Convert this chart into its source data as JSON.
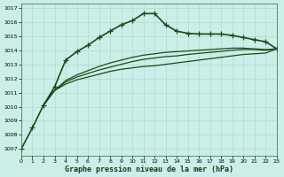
{
  "title": "Graphe pression niveau de la mer (hPa)",
  "background_color": "#cceee8",
  "grid_color": "#aaddcc",
  "line_color": "#1a4a1a",
  "xlim": [
    0,
    23
  ],
  "ylim": [
    1006.5,
    1017.3
  ],
  "yticks": [
    1007,
    1008,
    1009,
    1010,
    1011,
    1012,
    1013,
    1014,
    1015,
    1016,
    1017
  ],
  "xticks": [
    0,
    1,
    2,
    3,
    4,
    5,
    6,
    7,
    8,
    9,
    10,
    11,
    12,
    13,
    14,
    15,
    16,
    17,
    18,
    19,
    20,
    21,
    22,
    23
  ],
  "series": [
    {
      "x": [
        0,
        1,
        2,
        3,
        4,
        5,
        6,
        7,
        8,
        9,
        10,
        11,
        12,
        13,
        14,
        15,
        16,
        17,
        18,
        19,
        20,
        21,
        22,
        23
      ],
      "y": [
        1007.0,
        1008.5,
        1010.1,
        1011.4,
        1013.3,
        1013.9,
        1014.35,
        1014.9,
        1015.35,
        1015.8,
        1016.1,
        1016.6,
        1016.6,
        1015.8,
        1015.35,
        1015.2,
        1015.15,
        1015.15,
        1015.15,
        1015.05,
        1014.9,
        1014.75,
        1014.6,
        1014.1
      ],
      "marker": "+",
      "linewidth": 1.2,
      "markersize": 4
    },
    {
      "x": [
        2,
        3,
        4,
        5,
        6,
        7,
        8,
        9,
        10,
        11,
        12,
        13,
        14,
        15,
        16,
        17,
        18,
        19,
        20,
        21,
        22,
        23
      ],
      "y": [
        1010.1,
        1011.15,
        1011.6,
        1011.9,
        1012.1,
        1012.3,
        1012.5,
        1012.65,
        1012.75,
        1012.85,
        1012.9,
        1013.0,
        1013.1,
        1013.2,
        1013.3,
        1013.4,
        1013.5,
        1013.6,
        1013.7,
        1013.75,
        1013.8,
        1014.1
      ],
      "marker": null,
      "linewidth": 0.9
    },
    {
      "x": [
        2,
        3,
        4,
        5,
        6,
        7,
        8,
        9,
        10,
        11,
        12,
        13,
        14,
        15,
        16,
        17,
        18,
        19,
        20,
        21,
        22,
        23
      ],
      "y": [
        1010.1,
        1011.15,
        1011.75,
        1012.1,
        1012.35,
        1012.6,
        1012.8,
        1013.0,
        1013.2,
        1013.35,
        1013.45,
        1013.55,
        1013.6,
        1013.7,
        1013.78,
        1013.85,
        1013.92,
        1014.0,
        1014.05,
        1014.05,
        1014.0,
        1014.1
      ],
      "marker": null,
      "linewidth": 0.9
    },
    {
      "x": [
        2,
        3,
        4,
        5,
        6,
        7,
        8,
        9,
        10,
        11,
        12,
        13,
        14,
        15,
        16,
        17,
        18,
        19,
        20,
        21,
        22,
        23
      ],
      "y": [
        1010.1,
        1011.15,
        1011.85,
        1012.25,
        1012.55,
        1012.85,
        1013.1,
        1013.3,
        1013.5,
        1013.65,
        1013.75,
        1013.85,
        1013.9,
        1013.95,
        1014.0,
        1014.05,
        1014.1,
        1014.15,
        1014.15,
        1014.1,
        1014.05,
        1014.1
      ],
      "marker": null,
      "linewidth": 0.9
    }
  ]
}
